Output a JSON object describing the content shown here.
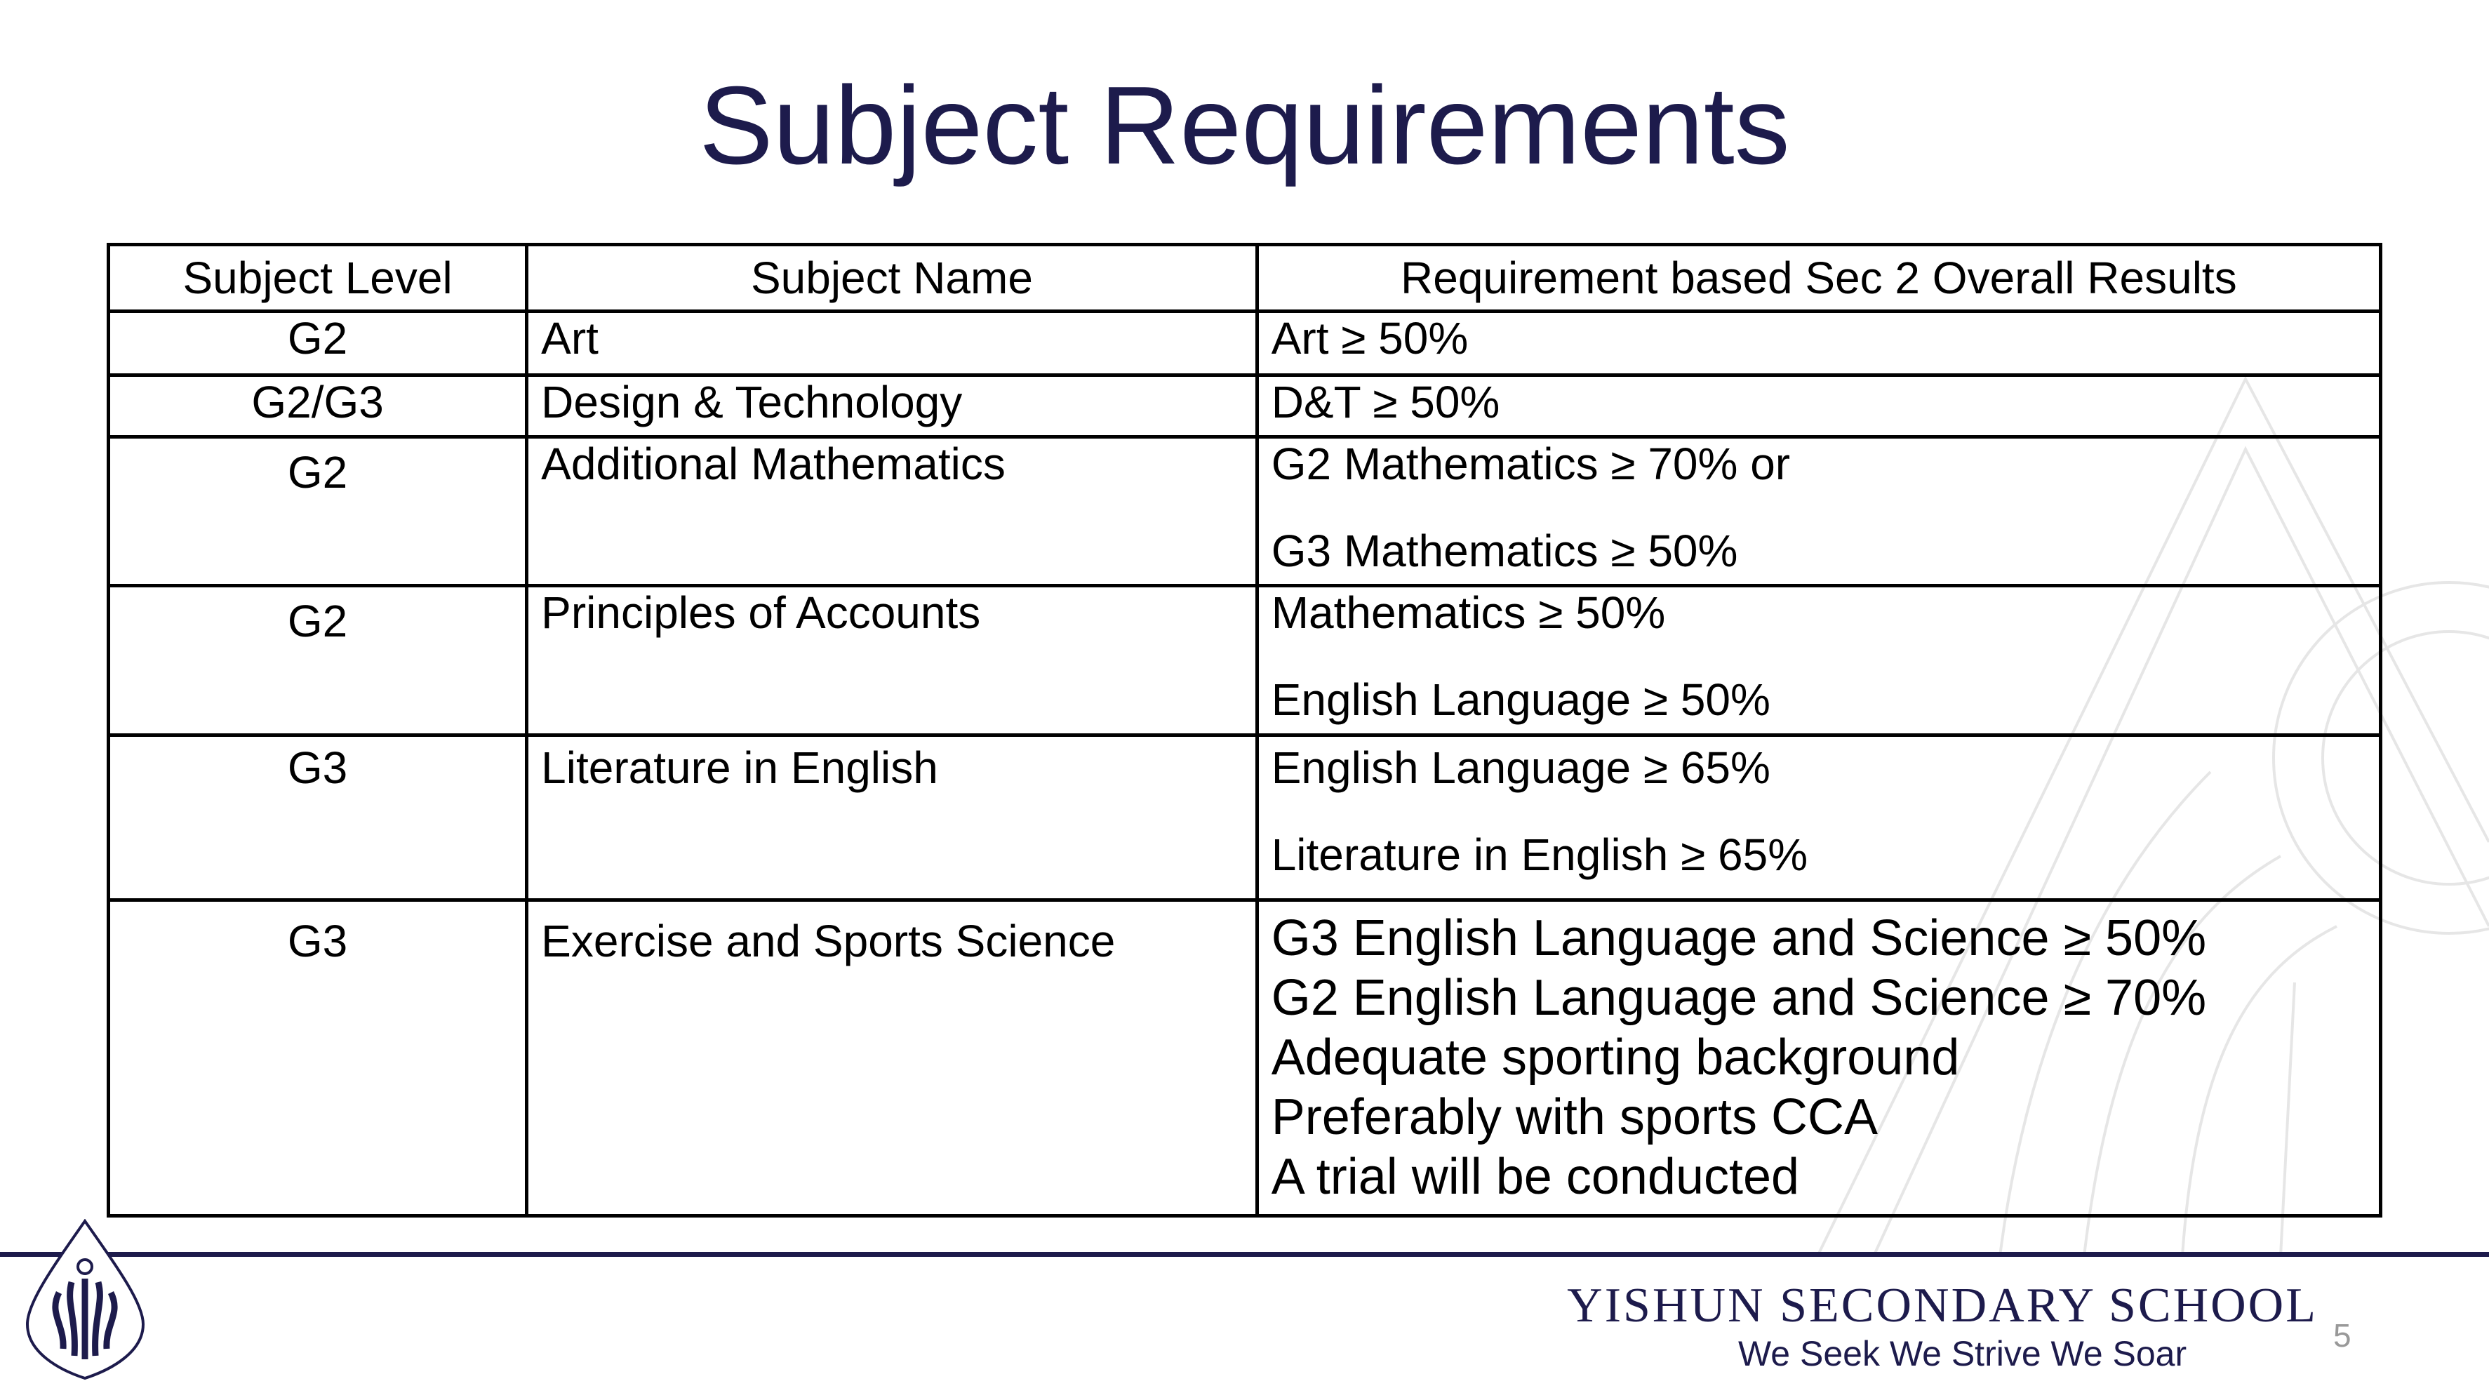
{
  "title": "Subject Requirements",
  "table": {
    "headers": [
      "Subject Level",
      "Subject Name",
      "Requirement based Sec 2 Overall Results"
    ],
    "rows": [
      {
        "level": "G2",
        "name": "Art",
        "req": [
          "Art ≥ 50%"
        ]
      },
      {
        "level": "G2/G3",
        "name": "Design & Technology",
        "req": [
          "D&T ≥ 50%"
        ]
      },
      {
        "level": "G2",
        "name": "Additional Mathematics",
        "req": [
          "G2 Mathematics ≥ 70% or",
          "G3 Mathematics ≥ 50%"
        ]
      },
      {
        "level": "G2",
        "name": "Principles of Accounts",
        "req": [
          "Mathematics ≥ 50%",
          "English Language ≥ 50%"
        ]
      },
      {
        "level": "G3",
        "name": "Literature in English",
        "req": [
          "English Language ≥ 65%",
          "Literature in English ≥ 65%"
        ]
      },
      {
        "level": "G3",
        "name": "Exercise and Sports Science",
        "req": [
          "G3 English Language and Science ≥ 50%",
          "G2 English Language and Science ≥ 70%",
          "Adequate sporting background",
          "Preferably with sports CCA",
          "A trial will be conducted"
        ]
      }
    ]
  },
  "footer": {
    "school_name": "YISHUN SECONDARY SCHOOL",
    "tagline": "We Seek We Strive We Soar",
    "page_number": "5",
    "logo_icon": "school-crest-icon",
    "brand_color": "#1d1b4c"
  }
}
